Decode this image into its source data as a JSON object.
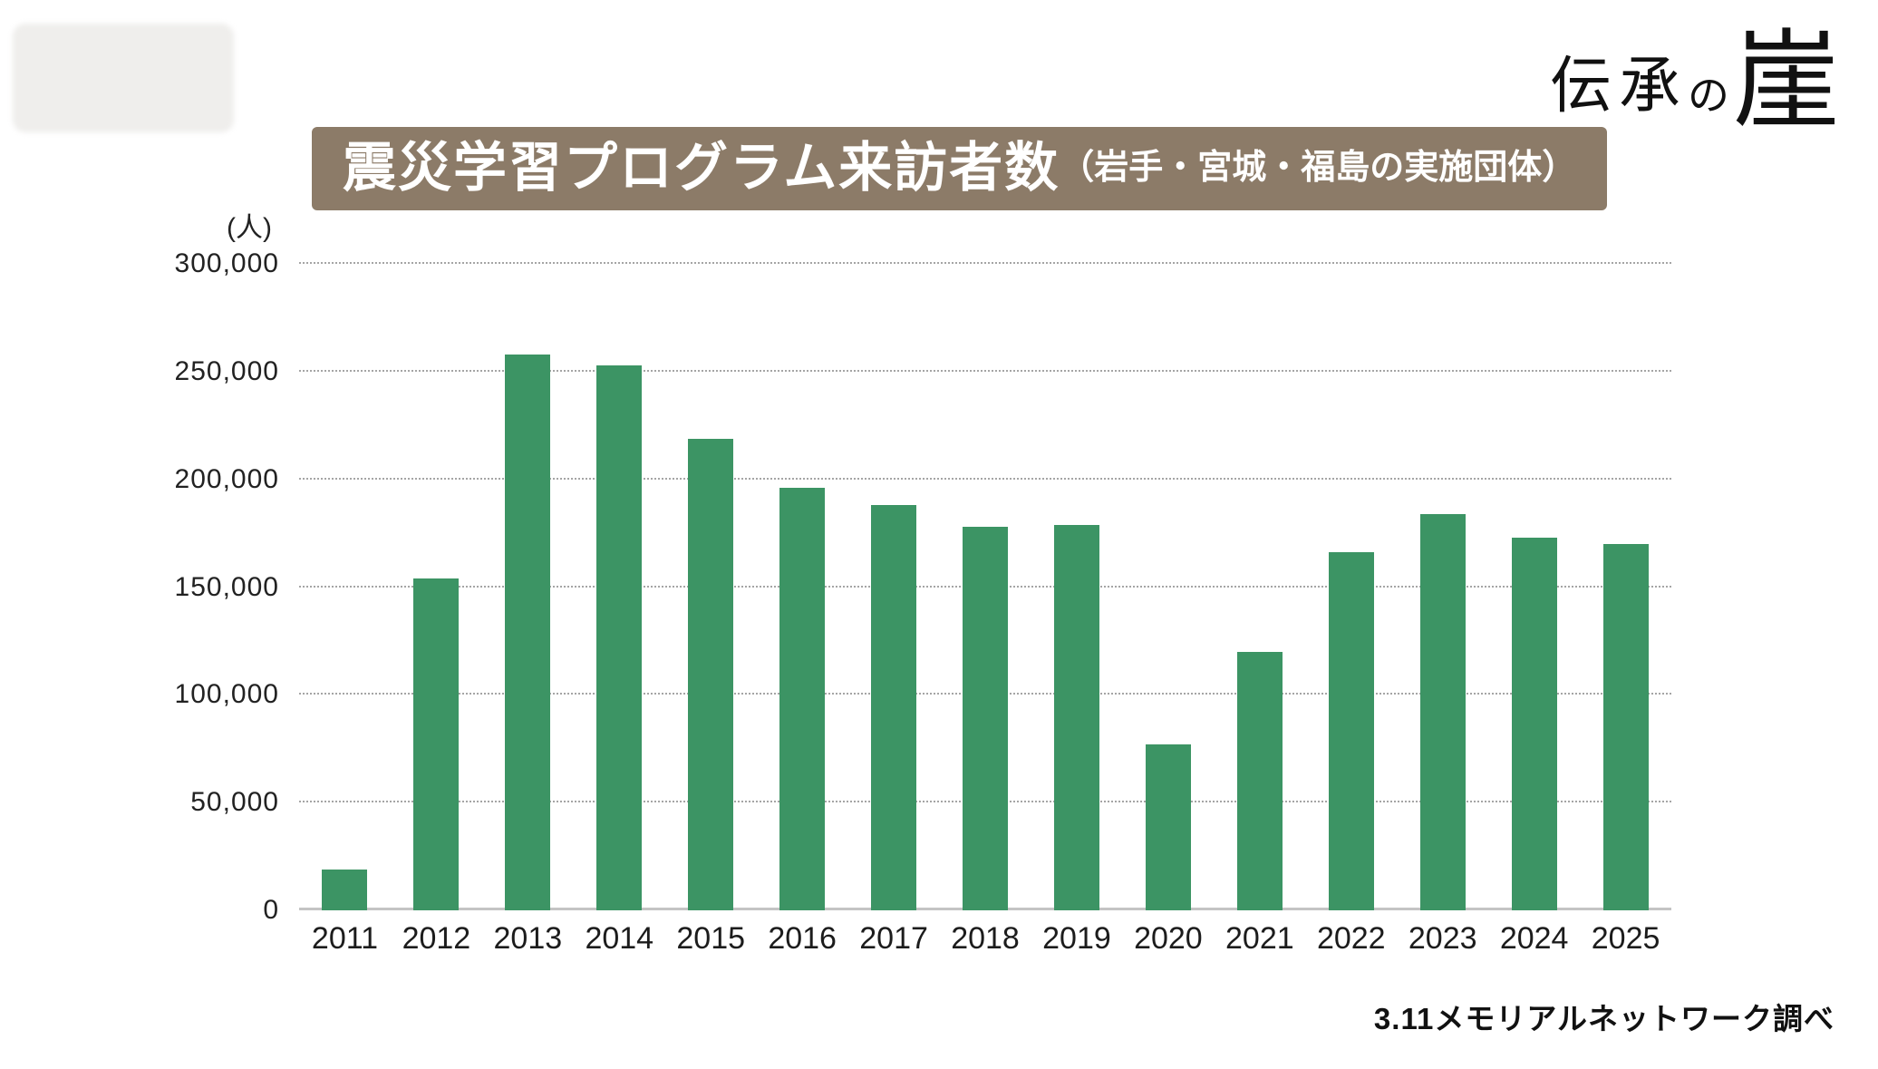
{
  "logo": {
    "part_denshou": "伝承",
    "part_no": "の",
    "part_gake": "崖"
  },
  "header": {
    "title_main": "震災学習プログラム来訪者数",
    "title_sub": "（岩手・宮城・福島の実施団体）",
    "banner_color": "#8c7b68"
  },
  "chart_data": {
    "type": "bar",
    "title": "震災学習プログラム来訪者数（岩手・宮城・福島の実施団体）",
    "unit_label": "(人)",
    "categories": [
      "2011",
      "2012",
      "2013",
      "2014",
      "2015",
      "2016",
      "2017",
      "2018",
      "2019",
      "2020",
      "2021",
      "2022",
      "2023",
      "2024",
      "2025"
    ],
    "values": [
      19000,
      154000,
      258000,
      253000,
      219000,
      196000,
      188000,
      178000,
      179000,
      77000,
      120000,
      166000,
      184000,
      173000,
      170000
    ],
    "ylim": [
      0,
      300000
    ],
    "yticks": [
      0,
      50000,
      100000,
      150000,
      200000,
      250000,
      300000
    ],
    "ytick_labels": [
      "0",
      "50,000",
      "100,000",
      "150,000",
      "200,000",
      "250,000",
      "300,000"
    ],
    "bar_color": "#3c9464",
    "grid": true,
    "legend": "none"
  },
  "footer": {
    "source": "3.11メモリアルネットワーク調べ"
  }
}
